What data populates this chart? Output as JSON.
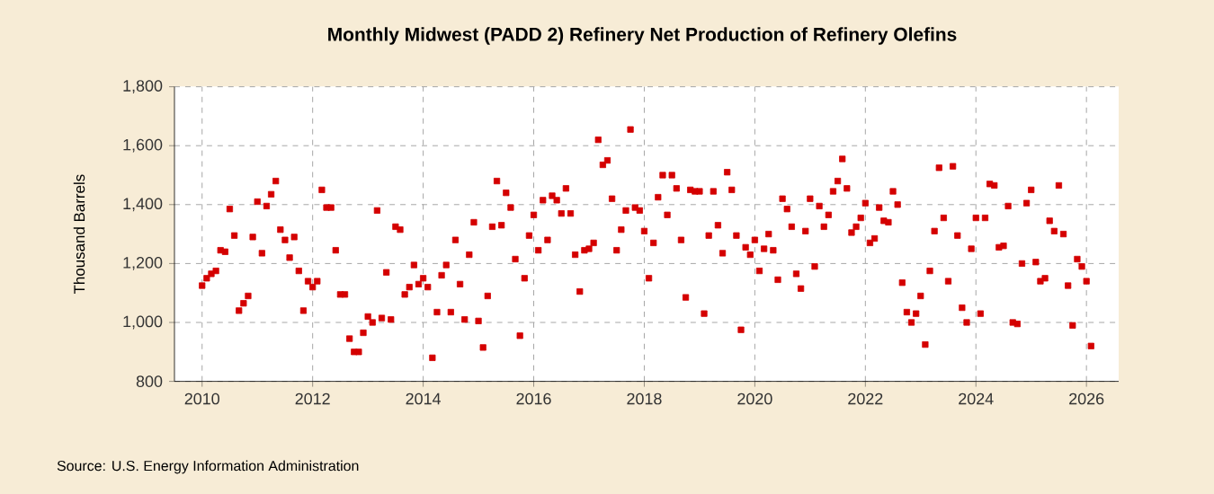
{
  "chart_data": {
    "type": "scatter",
    "title": "Monthly Midwest (PADD 2) Refinery Net Production of Refinery Olefins",
    "ylabel": "Thousand Barrels",
    "annotations": [
      "Source: U.S. Energy Information Administration"
    ],
    "x": [
      "2010-01",
      "2010-02",
      "2010-03",
      "2010-04",
      "2010-05",
      "2010-06",
      "2010-07",
      "2010-08",
      "2010-09",
      "2010-10",
      "2010-11",
      "2010-12",
      "2011-01",
      "2011-02",
      "2011-03",
      "2011-04",
      "2011-05",
      "2011-06",
      "2011-07",
      "2011-08",
      "2011-09",
      "2011-10",
      "2011-11",
      "2011-12",
      "2012-01",
      "2012-02",
      "2012-03",
      "2012-04",
      "2012-05",
      "2012-06",
      "2012-07",
      "2012-08",
      "2012-09",
      "2012-10",
      "2012-11",
      "2012-12",
      "2013-01",
      "2013-02",
      "2013-03",
      "2013-04",
      "2013-05",
      "2013-06",
      "2013-07",
      "2013-08",
      "2013-09",
      "2013-10",
      "2013-11",
      "2013-12",
      "2014-01",
      "2014-02",
      "2014-03",
      "2014-04",
      "2014-05",
      "2014-06",
      "2014-07",
      "2014-08",
      "2014-09",
      "2014-10",
      "2014-11",
      "2014-12",
      "2015-01",
      "2015-02",
      "2015-03",
      "2015-04",
      "2015-05",
      "2015-06",
      "2015-07",
      "2015-08",
      "2015-09",
      "2015-10",
      "2015-11",
      "2015-12",
      "2016-01",
      "2016-02",
      "2016-03",
      "2016-04",
      "2016-05",
      "2016-06",
      "2016-07",
      "2016-08",
      "2016-09",
      "2016-10",
      "2016-11",
      "2016-12",
      "2017-01",
      "2017-02",
      "2017-03",
      "2017-04",
      "2017-05",
      "2017-06",
      "2017-07",
      "2017-08",
      "2017-09",
      "2017-10",
      "2017-11",
      "2017-12",
      "2018-01",
      "2018-02",
      "2018-03",
      "2018-04",
      "2018-05",
      "2018-06",
      "2018-07",
      "2018-08",
      "2018-09",
      "2018-10",
      "2018-11",
      "2018-12",
      "2019-01",
      "2019-02",
      "2019-03",
      "2019-04",
      "2019-05",
      "2019-06",
      "2019-07",
      "2019-08",
      "2019-09",
      "2019-10",
      "2019-11",
      "2019-12",
      "2020-01",
      "2020-02",
      "2020-03",
      "2020-04",
      "2020-05",
      "2020-06",
      "2020-07",
      "2020-08",
      "2020-09",
      "2020-10",
      "2020-11",
      "2020-12",
      "2021-01",
      "2021-02",
      "2021-03",
      "2021-04",
      "2021-05",
      "2021-06",
      "2021-07",
      "2021-08",
      "2021-09",
      "2021-10",
      "2021-11",
      "2021-12",
      "2022-01",
      "2022-02",
      "2022-03",
      "2022-04",
      "2022-05",
      "2022-06",
      "2022-07",
      "2022-08",
      "2022-09",
      "2022-10",
      "2022-11",
      "2022-12",
      "2023-01",
      "2023-02",
      "2023-03",
      "2023-04",
      "2023-05",
      "2023-06",
      "2023-07",
      "2023-08",
      "2023-09",
      "2023-10",
      "2023-11",
      "2023-12",
      "2024-01",
      "2024-02",
      "2024-03",
      "2024-04",
      "2024-05",
      "2024-06",
      "2024-07",
      "2024-08",
      "2024-09",
      "2024-10",
      "2024-11",
      "2024-12",
      "2025-01",
      "2025-02",
      "2025-03",
      "2025-04",
      "2025-05",
      "2025-06",
      "2025-07",
      "2025-08",
      "2025-09",
      "2025-10",
      "2025-11",
      "2025-12",
      "2026-01",
      "2026-02"
    ],
    "series": [
      {
        "color": "#d40000",
        "values": [
          1125,
          1150,
          1165,
          1175,
          1245,
          1240,
          1385,
          1295,
          1040,
          1065,
          1090,
          1290,
          1410,
          1235,
          1395,
          1435,
          1480,
          1315,
          1280,
          1220,
          1290,
          1175,
          1040,
          1140,
          1120,
          1140,
          1450,
          1390,
          1390,
          1245,
          1095,
          1095,
          945,
          900,
          900,
          965,
          1020,
          1000,
          1380,
          1015,
          1170,
          1010,
          1325,
          1315,
          1095,
          1120,
          1195,
          1130,
          1150,
          1120,
          880,
          1035,
          1160,
          1195,
          1035,
          1280,
          1130,
          1010,
          1230,
          1340,
          1005,
          915,
          1090,
          1325,
          1480,
          1330,
          1440,
          1390,
          1215,
          955,
          1150,
          1295,
          1365,
          1245,
          1415,
          1280,
          1430,
          1415,
          1370,
          1455,
          1370,
          1230,
          1105,
          1245,
          1250,
          1270,
          1620,
          1535,
          1550,
          1420,
          1245,
          1315,
          1380,
          1655,
          1390,
          1380,
          1310,
          1150,
          1270,
          1425,
          1500,
          1365,
          1500,
          1455,
          1280,
          1085,
          1450,
          1445,
          1445,
          1030,
          1295,
          1445,
          1330,
          1235,
          1510,
          1450,
          1295,
          975,
          1255,
          1230,
          1280,
          1175,
          1250,
          1300,
          1245,
          1145,
          1420,
          1385,
          1325,
          1165,
          1115,
          1310,
          1420,
          1190,
          1395,
          1325,
          1365,
          1445,
          1480,
          1555,
          1455,
          1305,
          1325,
          1355,
          1405,
          1270,
          1285,
          1390,
          1345,
          1340,
          1445,
          1400,
          1135,
          1035,
          1000,
          1030,
          1090,
          925,
          1175,
          1310,
          1525,
          1355,
          1140,
          1530,
          1295,
          1050,
          1000,
          1250,
          1355,
          1030,
          1355,
          1470,
          1465,
          1255,
          1260,
          1395,
          1000,
          995,
          1200,
          1405,
          1450,
          1205,
          1140,
          1150,
          1345,
          1310,
          1465,
          1300,
          1125,
          990,
          1215,
          1190,
          1140,
          920
        ]
      }
    ],
    "xlim": [
      "2009-07",
      "2026-08"
    ],
    "xticks": [
      "2010",
      "2012",
      "2014",
      "2016",
      "2018",
      "2020",
      "2022",
      "2024",
      "2026"
    ],
    "ylim": [
      800,
      1800
    ],
    "yticks": [
      {
        "value": 800,
        "label": "800"
      },
      {
        "value": 1000,
        "label": "1,000"
      },
      {
        "value": 1200,
        "label": "1,200"
      },
      {
        "value": 1400,
        "label": "1,400"
      },
      {
        "value": 1600,
        "label": "1,600"
      },
      {
        "value": 1800,
        "label": "1,800"
      }
    ],
    "grid": true,
    "marker": "square"
  }
}
